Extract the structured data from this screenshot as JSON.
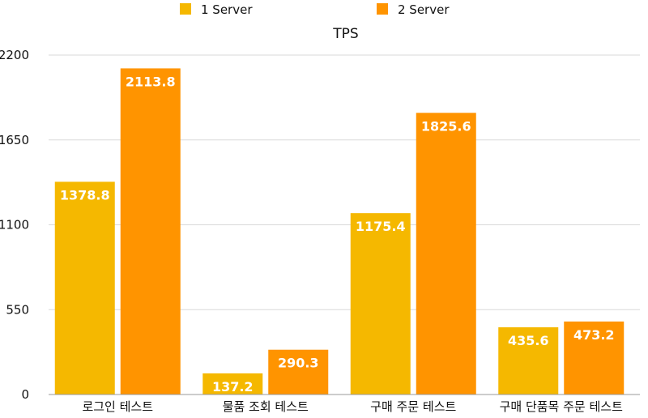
{
  "chart_data": {
    "type": "bar",
    "title": "TPS",
    "categories": [
      "로그인 테스트",
      "물품 조회 테스트",
      "구매 주문 테스트",
      "구매 단품목 주문 테스트"
    ],
    "series": [
      {
        "name": "1 Server",
        "color": "#F5B800",
        "values": [
          1378.8,
          137.2,
          1175.4,
          435.6
        ],
        "labels": [
          "1378.8",
          "137.2",
          "1175.4",
          "435.6"
        ]
      },
      {
        "name": "2 Server",
        "color": "#FF9400",
        "values": [
          2113.8,
          290.3,
          1825.6,
          473.2
        ],
        "labels": [
          "2113.8",
          "290.3",
          "1825.6",
          "473.2"
        ]
      }
    ],
    "ylim": [
      0,
      2200
    ],
    "yticks": [
      0,
      550,
      1100,
      1650,
      2200
    ],
    "ytick_labels": [
      "0",
      "550",
      "1100",
      "1650",
      "2200"
    ],
    "grid": true,
    "legend_position": "top-center",
    "gridline_color": "#D9D9D9",
    "axis_color": "#999999"
  }
}
